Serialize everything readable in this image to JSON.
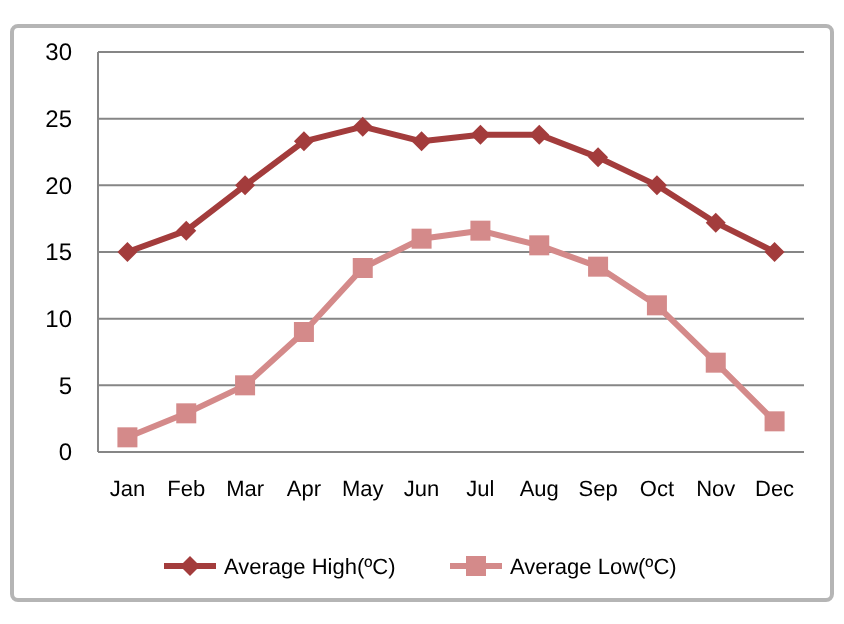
{
  "chart_data": {
    "type": "line",
    "categories": [
      "Jan",
      "Feb",
      "Mar",
      "Apr",
      "May",
      "Jun",
      "Jul",
      "Aug",
      "Sep",
      "Oct",
      "Nov",
      "Dec"
    ],
    "series": [
      {
        "name": "Average High(ºC)",
        "color": "#a33c3c",
        "marker": "diamond",
        "values": [
          15,
          16.6,
          20,
          23.3,
          24.4,
          23.3,
          23.8,
          23.8,
          22.1,
          20,
          17.2,
          15
        ]
      },
      {
        "name": "Average Low(ºC)",
        "color": "#d48a8a",
        "marker": "square",
        "values": [
          1.1,
          2.9,
          5,
          9,
          13.8,
          16,
          16.6,
          15.5,
          13.9,
          11,
          6.7,
          2.3
        ]
      }
    ],
    "ylim": [
      0,
      30
    ],
    "yticks": [
      0,
      5,
      10,
      15,
      20,
      25,
      30
    ],
    "grid": "y",
    "legend": "bottom",
    "line_style": "solid"
  }
}
